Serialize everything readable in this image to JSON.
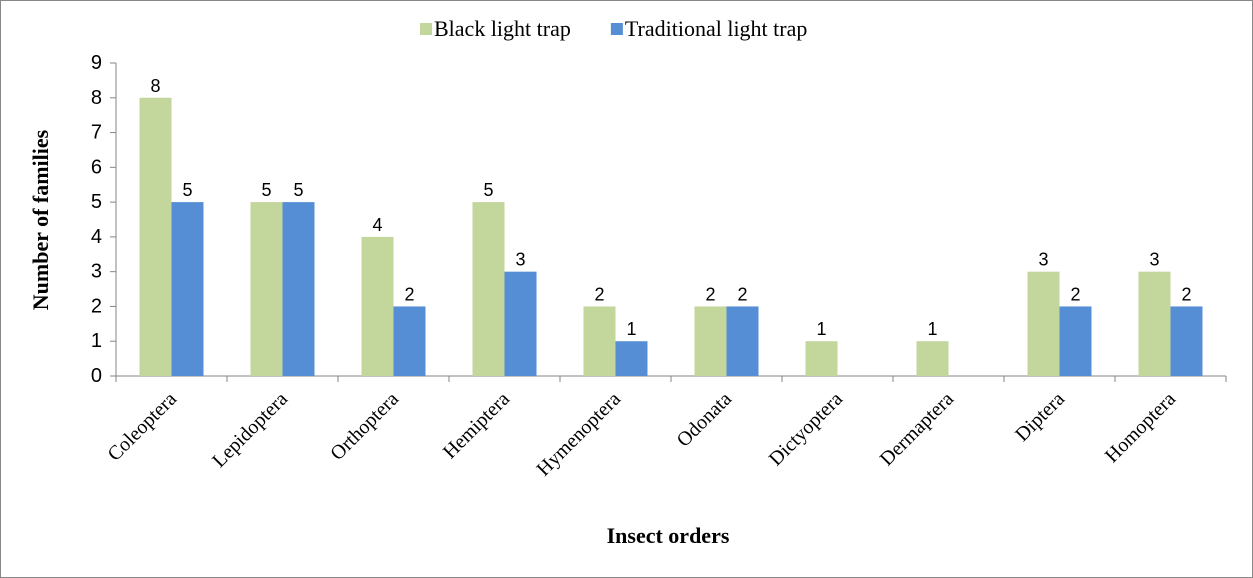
{
  "chart_data": {
    "type": "bar",
    "xlabel": "Insect orders",
    "ylabel": "Number of families",
    "categories": [
      "Coleoptera",
      "Lepidoptera",
      "Orthoptera",
      "Hemiptera",
      "Hymenoptera",
      "Odonata",
      "Dictyoptera",
      "Dermaptera",
      "Diptera",
      "Homoptera"
    ],
    "series": [
      {
        "name": "Black light trap",
        "color": "#c3d69b",
        "values": [
          8,
          5,
          4,
          5,
          2,
          2,
          1,
          1,
          3,
          3
        ]
      },
      {
        "name": "Traditional light trap",
        "color": "#558ed5",
        "values": [
          5,
          5,
          2,
          3,
          1,
          2,
          null,
          null,
          2,
          2
        ]
      }
    ],
    "ylim": [
      0,
      9
    ],
    "yticks": [
      0,
      1,
      2,
      3,
      4,
      5,
      6,
      7,
      8,
      9
    ],
    "grid": false,
    "legend": "top"
  }
}
